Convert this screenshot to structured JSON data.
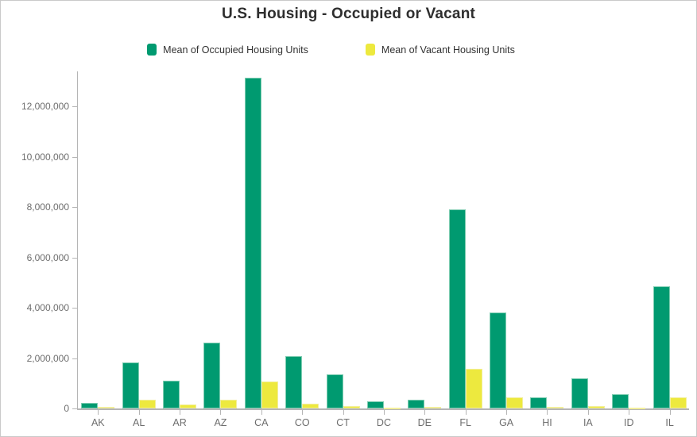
{
  "title": "U.S. Housing - Occupied or Vacant",
  "legend": [
    {
      "label": "Mean of Occupied Housing Units",
      "color": "#009a70"
    },
    {
      "label": "Mean of Vacant Housing Units",
      "color": "#ede93e"
    }
  ],
  "chart_data": {
    "type": "bar",
    "title": "U.S. Housing - Occupied or Vacant",
    "categories": [
      "AK",
      "AL",
      "AR",
      "AZ",
      "CA",
      "CO",
      "CT",
      "DC",
      "DE",
      "FL",
      "GA",
      "HI",
      "IA",
      "ID",
      "IL"
    ],
    "series": [
      {
        "name": "Mean of Occupied Housing Units",
        "color": "#009a70",
        "border_color": "#7fcdb2",
        "values": [
          210000,
          1840000,
          1110000,
          2600000,
          13140000,
          2070000,
          1340000,
          270000,
          340000,
          7900000,
          3810000,
          430000,
          1210000,
          580000,
          4860000
        ]
      },
      {
        "name": "Mean of Vacant Housing Units",
        "color": "#ede93e",
        "border_color": "#f2ee9b",
        "values": [
          60000,
          350000,
          145000,
          355000,
          1060000,
          185000,
          100000,
          35000,
          65000,
          1580000,
          450000,
          50000,
          110000,
          45000,
          430000
        ]
      }
    ],
    "xlabel": "",
    "ylabel": "",
    "ylim": [
      0,
      13390000
    ],
    "yticks": [
      0,
      2000000,
      4000000,
      6000000,
      8000000,
      10000000,
      12000000
    ],
    "ytick_labels": [
      "0",
      "2,000,000",
      "4,000,000",
      "6,000,000",
      "8,000,000",
      "10,000,000",
      "12,000,000"
    ],
    "grid": false,
    "legend_position": "top"
  },
  "colors": {
    "axis_line": "#b5b5b5",
    "tick": "#b5b5b5",
    "axis_label": "#6e6e6e",
    "title_text": "#2e2e2e",
    "legend_text": "#323232",
    "window_border": "#c9c9c9",
    "background": "#ffffff"
  }
}
